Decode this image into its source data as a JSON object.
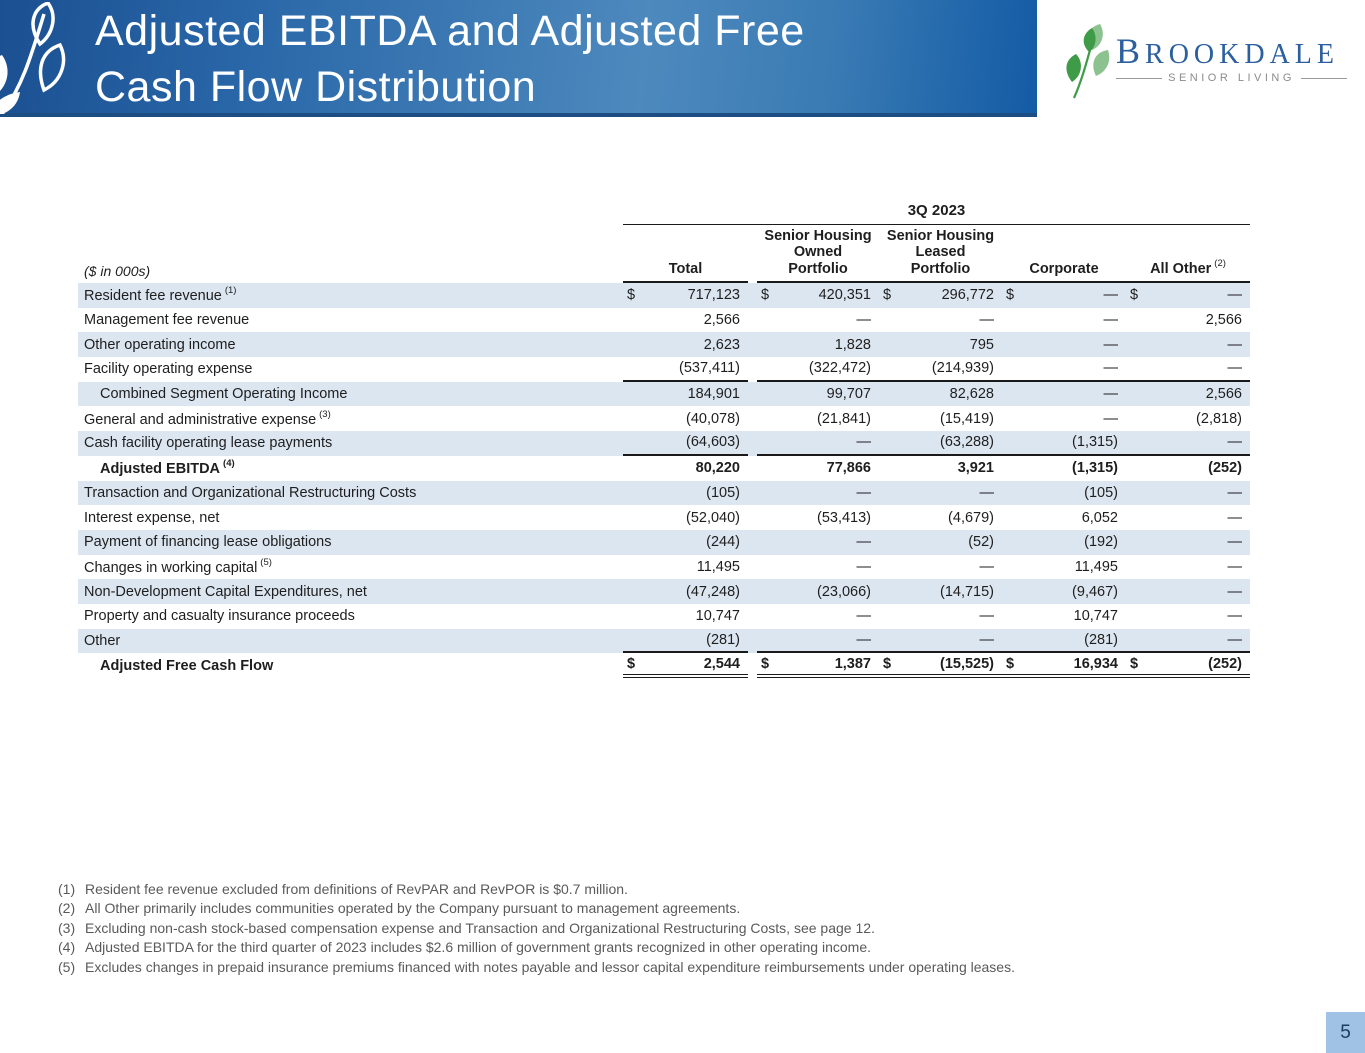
{
  "slide": {
    "title_line1": "Adjusted EBITDA and Adjusted Free",
    "title_line2": "Cash Flow Distribution",
    "page_number": "5"
  },
  "logo": {
    "brand": "BROOKDALE",
    "tagline": "SENIOR LIVING"
  },
  "colors": {
    "banner_blue_dark": "#1b5092",
    "banner_blue_light": "#4d89bd",
    "row_stripe": "#dce6f1",
    "brand_blue": "#2b5f9e",
    "brand_green": "#3e9b47",
    "footnote_gray": "#5a5a5a",
    "page_badge": "#9fc2e5"
  },
  "table": {
    "period_header": "3Q 2023",
    "units_label": "($ in 000s)",
    "columns": [
      "Total",
      "Senior Housing\nOwned\nPortfolio",
      "Senior Housing\nLeased\nPortfolio",
      "Corporate",
      "All Other"
    ],
    "all_other_sup": "(2)",
    "rows": [
      {
        "label": "Resident fee revenue",
        "sup": "(1)",
        "shaded": true,
        "cells": [
          {
            "s": "$",
            "v": "717,123"
          },
          {
            "s": "$",
            "v": "420,351"
          },
          {
            "s": "$",
            "v": "296,772"
          },
          {
            "s": "$",
            "v": "—"
          },
          {
            "s": "$",
            "v": "—"
          }
        ]
      },
      {
        "label": "Management fee revenue",
        "cells": [
          {
            "s": "",
            "v": "2,566"
          },
          {
            "s": "",
            "v": "—"
          },
          {
            "s": "",
            "v": "—"
          },
          {
            "s": "",
            "v": "—"
          },
          {
            "s": "",
            "v": "2,566"
          }
        ]
      },
      {
        "label": "Other operating income",
        "shaded": true,
        "cells": [
          {
            "s": "",
            "v": "2,623"
          },
          {
            "s": "",
            "v": "1,828"
          },
          {
            "s": "",
            "v": "795"
          },
          {
            "s": "",
            "v": "—"
          },
          {
            "s": "",
            "v": "—"
          }
        ]
      },
      {
        "label": "Facility operating expense",
        "line_below": "single",
        "cells": [
          {
            "s": "",
            "v": "(537,411)"
          },
          {
            "s": "",
            "v": "(322,472)"
          },
          {
            "s": "",
            "v": "(214,939)"
          },
          {
            "s": "",
            "v": "—"
          },
          {
            "s": "",
            "v": "—"
          }
        ]
      },
      {
        "label": "Combined Segment Operating Income",
        "indent": true,
        "shaded": true,
        "cells": [
          {
            "s": "",
            "v": "184,901"
          },
          {
            "s": "",
            "v": "99,707"
          },
          {
            "s": "",
            "v": "82,628"
          },
          {
            "s": "",
            "v": "—"
          },
          {
            "s": "",
            "v": "2,566"
          }
        ]
      },
      {
        "label": "General and administrative expense",
        "sup": "(3)",
        "cells": [
          {
            "s": "",
            "v": "(40,078)"
          },
          {
            "s": "",
            "v": "(21,841)"
          },
          {
            "s": "",
            "v": "(15,419)"
          },
          {
            "s": "",
            "v": "—"
          },
          {
            "s": "",
            "v": "(2,818)"
          }
        ]
      },
      {
        "label": "Cash facility operating lease payments",
        "shaded": true,
        "line_below": "single",
        "cells": [
          {
            "s": "",
            "v": "(64,603)"
          },
          {
            "s": "",
            "v": "—"
          },
          {
            "s": "",
            "v": "(63,288)"
          },
          {
            "s": "",
            "v": "(1,315)"
          },
          {
            "s": "",
            "v": "—"
          }
        ]
      },
      {
        "label": "Adjusted EBITDA",
        "sup": "(4)",
        "indent": true,
        "bold": true,
        "cells": [
          {
            "s": "",
            "v": "80,220"
          },
          {
            "s": "",
            "v": "77,866"
          },
          {
            "s": "",
            "v": "3,921"
          },
          {
            "s": "",
            "v": "(1,315)"
          },
          {
            "s": "",
            "v": "(252)"
          }
        ]
      },
      {
        "label": "Transaction and Organizational Restructuring Costs",
        "shaded": true,
        "cells": [
          {
            "s": "",
            "v": "(105)"
          },
          {
            "s": "",
            "v": "—"
          },
          {
            "s": "",
            "v": "—"
          },
          {
            "s": "",
            "v": "(105)"
          },
          {
            "s": "",
            "v": "—"
          }
        ]
      },
      {
        "label": "Interest expense, net",
        "cells": [
          {
            "s": "",
            "v": "(52,040)"
          },
          {
            "s": "",
            "v": "(53,413)"
          },
          {
            "s": "",
            "v": "(4,679)"
          },
          {
            "s": "",
            "v": "6,052"
          },
          {
            "s": "",
            "v": "—"
          }
        ]
      },
      {
        "label": "Payment of financing lease obligations",
        "shaded": true,
        "cells": [
          {
            "s": "",
            "v": "(244)"
          },
          {
            "s": "",
            "v": "—"
          },
          {
            "s": "",
            "v": "(52)"
          },
          {
            "s": "",
            "v": "(192)"
          },
          {
            "s": "",
            "v": "—"
          }
        ]
      },
      {
        "label": "Changes in working capital",
        "sup": "(5)",
        "cells": [
          {
            "s": "",
            "v": "11,495"
          },
          {
            "s": "",
            "v": "—"
          },
          {
            "s": "",
            "v": "—"
          },
          {
            "s": "",
            "v": "11,495"
          },
          {
            "s": "",
            "v": "—"
          }
        ]
      },
      {
        "label": "Non-Development Capital Expenditures, net",
        "shaded": true,
        "cells": [
          {
            "s": "",
            "v": "(47,248)"
          },
          {
            "s": "",
            "v": "(23,066)"
          },
          {
            "s": "",
            "v": "(14,715)"
          },
          {
            "s": "",
            "v": "(9,467)"
          },
          {
            "s": "",
            "v": "—"
          }
        ]
      },
      {
        "label": "Property and casualty insurance proceeds",
        "cells": [
          {
            "s": "",
            "v": "10,747"
          },
          {
            "s": "",
            "v": "—"
          },
          {
            "s": "",
            "v": "—"
          },
          {
            "s": "",
            "v": "10,747"
          },
          {
            "s": "",
            "v": "—"
          }
        ]
      },
      {
        "label": "Other",
        "shaded": true,
        "line_below": "single",
        "cells": [
          {
            "s": "",
            "v": "(281)"
          },
          {
            "s": "",
            "v": "—"
          },
          {
            "s": "",
            "v": "—"
          },
          {
            "s": "",
            "v": "(281)"
          },
          {
            "s": "",
            "v": "—"
          }
        ]
      },
      {
        "label": "Adjusted Free Cash Flow",
        "indent": true,
        "bold": true,
        "line_below": "double",
        "cells": [
          {
            "s": "$",
            "v": "2,544"
          },
          {
            "s": "$",
            "v": "1,387"
          },
          {
            "s": "$",
            "v": "(15,525)"
          },
          {
            "s": "$",
            "v": "16,934"
          },
          {
            "s": "$",
            "v": "(252)"
          }
        ]
      }
    ]
  },
  "footnotes": [
    {
      "num": "(1)",
      "text": "Resident fee revenue excluded from definitions of RevPAR and RevPOR is $0.7 million."
    },
    {
      "num": "(2)",
      "text": "All Other primarily includes communities operated by the Company pursuant to management agreements."
    },
    {
      "num": "(3)",
      "text": "Excluding non-cash stock-based compensation expense and Transaction and Organizational Restructuring Costs, see page 12."
    },
    {
      "num": "(4)",
      "text": "Adjusted EBITDA for the third quarter of 2023 includes $2.6 million of government grants recognized in other operating income."
    },
    {
      "num": "(5)",
      "text": "Excludes changes in prepaid insurance premiums financed with notes payable and lessor capital expenditure reimbursements under operating leases."
    }
  ]
}
